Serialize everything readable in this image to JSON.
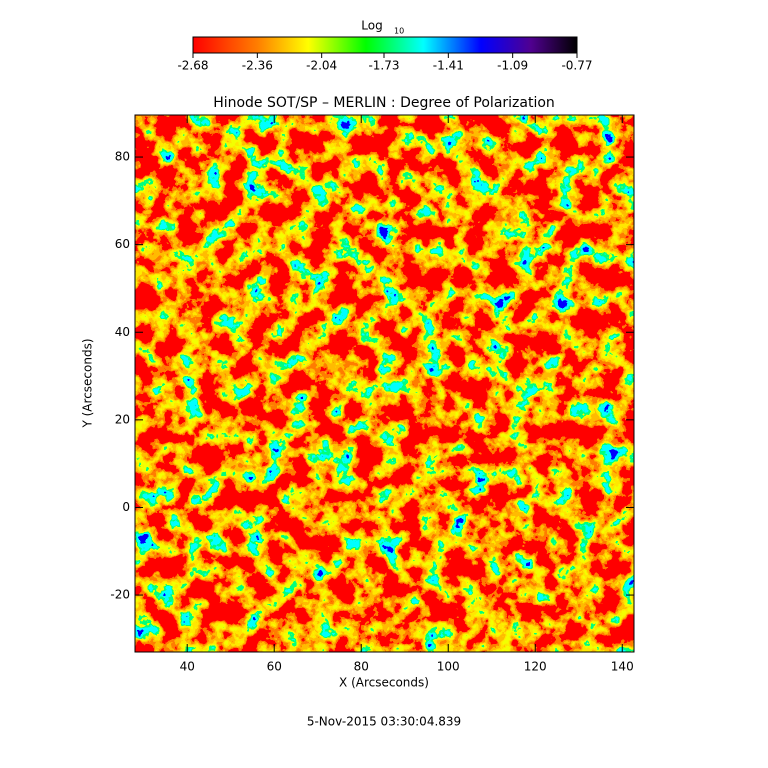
{
  "chart_data": {
    "type": "image",
    "title": "Hinode SOT/SP – MERLIN : Degree of Polarization",
    "colorbar_label": "Log",
    "colorbar_label_sub": "10",
    "colorbar_lim": [
      -2.68,
      -0.77
    ],
    "colorbar_ticks": [
      -2.68,
      -2.36,
      -2.04,
      -1.73,
      -1.41,
      -1.09,
      -0.77
    ],
    "xlabel": "X (Arcseconds)",
    "ylabel": "Y (Arcseconds)",
    "xlim": [
      28,
      142.7
    ],
    "ylim": [
      -33,
      89.6
    ],
    "xticks": [
      40,
      60,
      80,
      100,
      120,
      140
    ],
    "yticks": [
      -20,
      0,
      20,
      40,
      60,
      80
    ],
    "footer": "5-Nov-2015 03:30:04.839"
  }
}
